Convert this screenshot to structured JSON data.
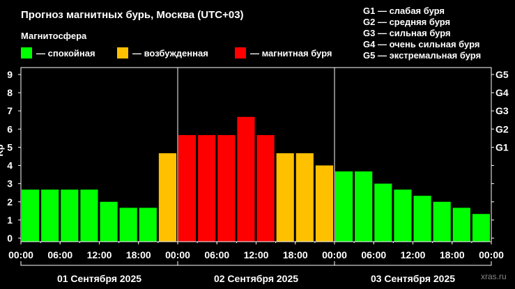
{
  "chart_data": {
    "type": "bar",
    "title": "Прогноз магнитных бурь, Москва (UTC+03)",
    "legend_title": "Магнитосфера",
    "legend": [
      {
        "key": "calm",
        "label": "— спокойная",
        "color": "#00FF00"
      },
      {
        "key": "excited",
        "label": "— возбужденная",
        "color": "#FFC000"
      },
      {
        "key": "storm",
        "label": "— магнитная буря",
        "color": "#FF0000"
      }
    ],
    "g_legend": [
      "G1 — слабая буря",
      "G2 — средняя буря",
      "G3 — сильная буря",
      "G4 — очень сильная буря",
      "G5 — экстремальная буря"
    ],
    "ylabel": "Kp",
    "ylim": [
      0,
      9
    ],
    "y_ticks": [
      "0",
      "1",
      "2",
      "3",
      "4",
      "5",
      "6",
      "7",
      "8",
      "9"
    ],
    "right_ticks": [
      {
        "value": 5,
        "label": "G1"
      },
      {
        "value": 6,
        "label": "G2"
      },
      {
        "value": 7,
        "label": "G3"
      },
      {
        "value": 8,
        "label": "G4"
      },
      {
        "value": 9,
        "label": "G5"
      }
    ],
    "x_tick_labels": [
      "00:00",
      "06:00",
      "12:00",
      "18:00",
      "00:00",
      "06:00",
      "12:00",
      "18:00",
      "00:00",
      "06:00",
      "12:00",
      "18:00",
      "00:00"
    ],
    "days": [
      "01 Сентября 2025",
      "02 Сентября 2025",
      "03 Сентября 2025"
    ],
    "interval_hours": 3,
    "values": [
      2.67,
      2.67,
      2.67,
      2.67,
      2.0,
      1.67,
      1.67,
      4.67,
      5.67,
      5.67,
      5.67,
      6.67,
      5.67,
      4.67,
      4.67,
      4.0,
      3.67,
      3.67,
      3.0,
      2.67,
      2.33,
      2.0,
      1.67,
      1.33
    ],
    "levels": [
      "calm",
      "calm",
      "calm",
      "calm",
      "calm",
      "calm",
      "calm",
      "excited",
      "storm",
      "storm",
      "storm",
      "storm",
      "storm",
      "excited",
      "excited",
      "excited",
      "calm",
      "calm",
      "calm",
      "calm",
      "calm",
      "calm",
      "calm",
      "calm"
    ],
    "grid": false,
    "watermark": "xras.ru"
  }
}
